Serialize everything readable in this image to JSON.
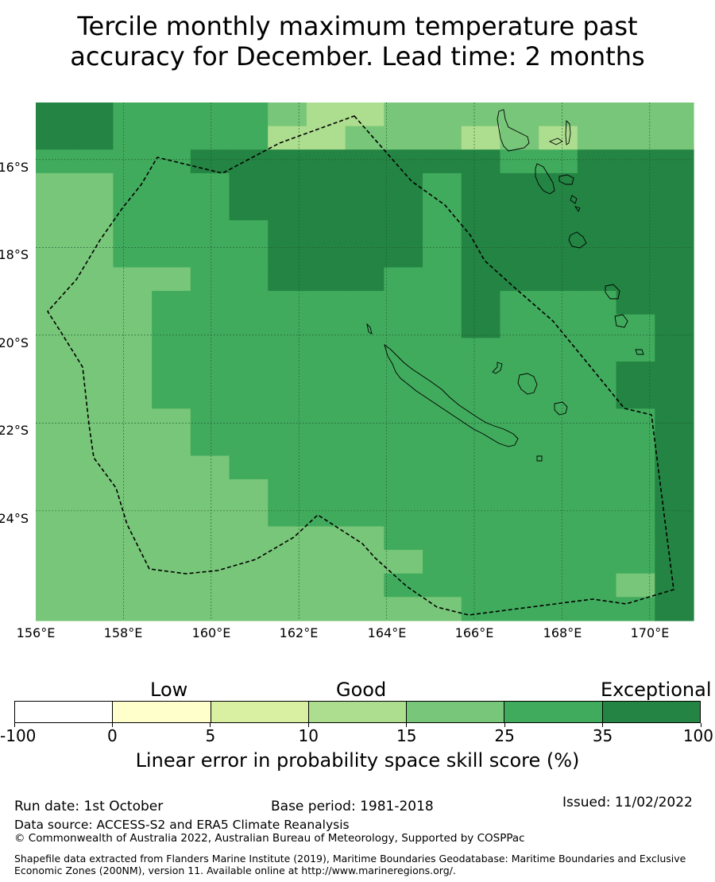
{
  "title_line1": "Tercile monthly maximum temperature past",
  "title_line2": "accuracy for December. Lead time: 2 months",
  "map": {
    "lon_range": [
      156,
      171
    ],
    "lat_range": [
      -26.5,
      -14.7
    ],
    "lat_ticks": [
      "16°S",
      "18°S",
      "20°S",
      "22°S",
      "24°S"
    ],
    "lon_ticks": [
      "156°E",
      "158°E",
      "160°E",
      "162°E",
      "164°E",
      "166°E",
      "168°E",
      "170°E"
    ],
    "colors": [
      "#ffffff",
      "#ffffcc",
      "#d9f0a3",
      "#addd8e",
      "#78c679",
      "#41ab5d",
      "#238443"
    ],
    "grid_rows": [
      "66555543344444444",
      "66555533444343444",
      "55556666666655666",
      "44555666665666666",
      "44555666665666666",
      "44555566665666666",
      "44555566665666666",
      "44445566655666666",
      "44455555555655566",
      "44455555555655556",
      "44455555555555556",
      "44455555555555566",
      "44455555555555566",
      "44445555555555556",
      "44445555555555556",
      "44444555555555556",
      "44444455555555556",
      "44444455555555556",
      "44444444455555556",
      "44444444445555556",
      "44444444455555546",
      "44444444444555556"
    ]
  },
  "legend": {
    "category_labels": [
      "Low",
      "Good",
      "Exceptional"
    ],
    "tick_labels": [
      "-100",
      "0",
      "5",
      "10",
      "15",
      "25",
      "35",
      "100"
    ],
    "title": "Linear error in probability space skill score (%)"
  },
  "footer": {
    "run_date": "Run date: 1st October",
    "base_period": "Base period: 1981-2018",
    "issued": "Issued: 11/02/2022",
    "data_source": "Data source: ACCESS-S2 and ERA5 Climate Reanalysis",
    "copyright": "© Commonwealth of Australia 2022, Australian Bureau of Meteorology, Supported by COSPPac",
    "shapefile": "Shapefile data extracted from Flanders Marine Institute (2019), Maritime Boundaries Geodatabase: Maritime Boundaries and Exclusive Economic Zones (200NM), version 11. Available online at http://www.marineregions.org/."
  }
}
